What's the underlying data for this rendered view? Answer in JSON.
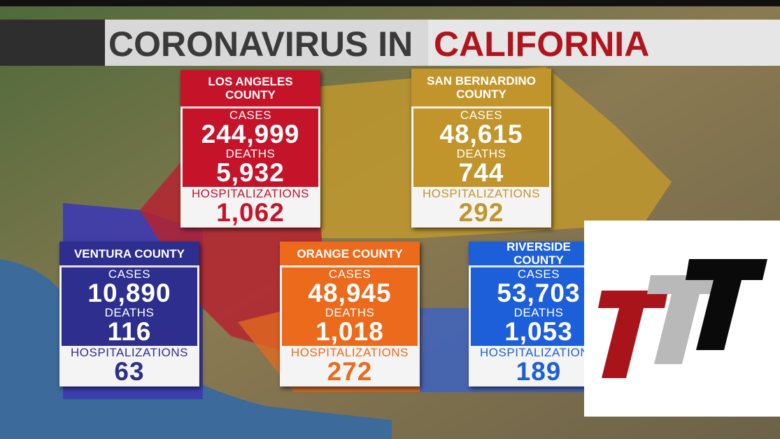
{
  "header": {
    "title_part1": "CORONAVIRUS IN",
    "title_part2": "CALIFORNIA"
  },
  "counties": [
    {
      "name": "LOS ANGELES COUNTY",
      "cases_label": "CASES",
      "cases": "244,999",
      "deaths_label": "DEATHS",
      "deaths": "5,932",
      "hosp_label": "HOSPITALIZATIONS",
      "hospitalizations": "1,062"
    },
    {
      "name": "SAN BERNARDINO COUNTY",
      "cases_label": "CASES",
      "cases": "48,615",
      "deaths_label": "DEATHS",
      "deaths": "744",
      "hosp_label": "HOSPITALIZATIONS",
      "hospitalizations": "292"
    },
    {
      "name": "VENTURA COUNTY",
      "cases_label": "CASES",
      "cases": "10,890",
      "deaths_label": "DEATHS",
      "deaths": "116",
      "hosp_label": "HOSPITALIZATIONS",
      "hospitalizations": "63"
    },
    {
      "name": "ORANGE COUNTY",
      "cases_label": "CASES",
      "cases": "48,945",
      "deaths_label": "DEATHS",
      "deaths": "1,018",
      "hosp_label": "HOSPITALIZATIONS",
      "hospitalizations": "272"
    },
    {
      "name": "RIVERSIDE COUNTY",
      "cases_label": "CASES",
      "cases": "53,703",
      "deaths_label": "DEATHS",
      "deaths": "1,053",
      "hosp_label": "HOSPITALIZATIONS",
      "hospitalizations": "189"
    }
  ]
}
